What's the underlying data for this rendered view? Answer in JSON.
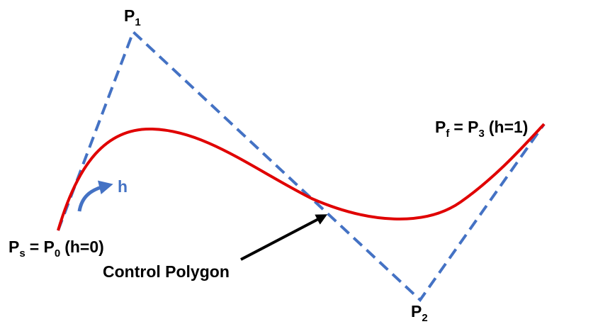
{
  "labels": {
    "p1": {
      "base": "P",
      "sub": "1"
    },
    "p2": {
      "base": "P",
      "sub": "2"
    },
    "ps": {
      "base": "P",
      "sub": "s",
      "eq": "= P",
      "sub2": "0",
      "note": "(h=0)"
    },
    "pf": {
      "base": "P",
      "sub": "f",
      "eq": "= P",
      "sub2": "3",
      "note": "(h=1)"
    },
    "h": "h",
    "polygon": "Control Polygon"
  }
}
